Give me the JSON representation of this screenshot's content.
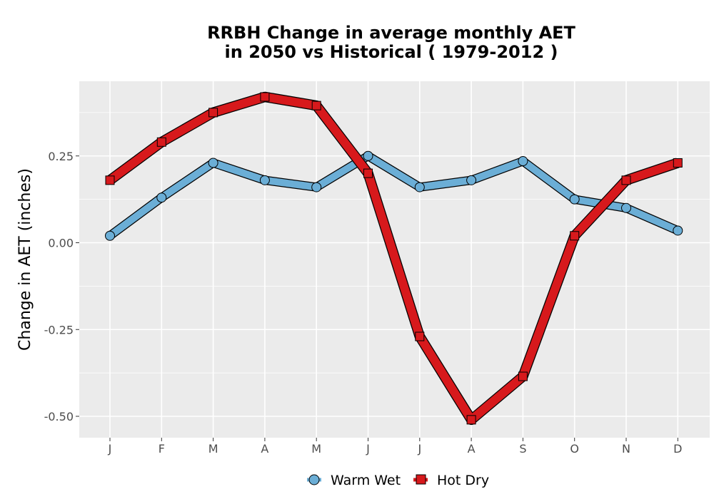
{
  "chart_data": {
    "type": "line",
    "title_line1": "RRBH  Change in average monthly AET",
    "title_line2": "in 2050 vs Historical ( 1979-2012 )",
    "xlabel": "",
    "ylabel": "Change in AET (inches)",
    "categories": [
      "J",
      "F",
      "M",
      "A",
      "M",
      "J",
      "J",
      "A",
      "S",
      "O",
      "N",
      "D"
    ],
    "y_ticks": [
      0.25,
      0.0,
      -0.25,
      -0.5
    ],
    "y_tick_labels": [
      "0.25",
      "0.00",
      "-0.25",
      "-0.50"
    ],
    "ylim": [
      -0.56,
      0.47
    ],
    "grid": true,
    "legend_position": "bottom",
    "series": [
      {
        "name": "Warm Wet",
        "marker": "circle",
        "color": "#6baed6",
        "values": [
          0.02,
          0.13,
          0.23,
          0.18,
          0.16,
          0.25,
          0.16,
          0.18,
          0.235,
          0.125,
          0.1,
          0.035
        ]
      },
      {
        "name": "Hot Dry",
        "marker": "square",
        "color": "#d7191c",
        "values": [
          0.18,
          0.29,
          0.375,
          0.42,
          0.395,
          0.2,
          -0.27,
          -0.51,
          -0.385,
          0.02,
          0.18,
          0.23
        ]
      }
    ]
  }
}
